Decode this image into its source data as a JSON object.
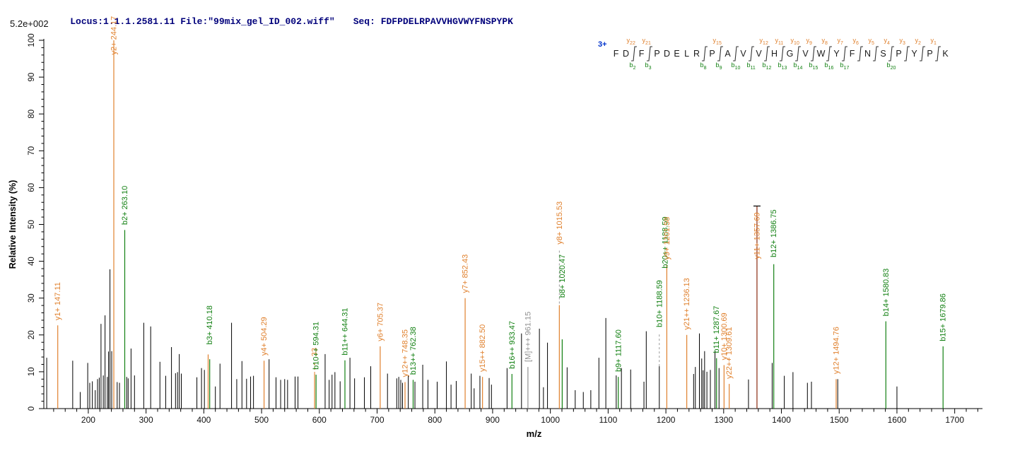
{
  "header": {
    "locus_file": "Locus:1.1.1.2581.11 File:\"99mix_gel_ID_002.wiff\"",
    "seq_label": "Seq: FDFPDELRPAVVHGVWYFNSPYPK",
    "scale_label": "5.2e+002"
  },
  "axes": {
    "x_title": "m/z",
    "y_title": "Relative  Intensity  (%)"
  },
  "colors": {
    "k": "#000000",
    "y": "#e0812e",
    "b": "#128012",
    "g": "#909090",
    "yd": "#8a2b10",
    "axis": "#000000",
    "header_navy": "#00007b",
    "charge_blue": "#0033cc",
    "connector_gray": "#9a9a9a"
  },
  "ladder": {
    "charge": "3+",
    "residues": [
      {
        "aa": "F"
      },
      {
        "aa": "D",
        "cut": {
          "b": "2",
          "y": "22"
        }
      },
      {
        "aa": "F",
        "cut": {
          "b": "3",
          "y": "21"
        }
      },
      {
        "aa": "P"
      },
      {
        "aa": "D"
      },
      {
        "aa": "E"
      },
      {
        "aa": "L"
      },
      {
        "aa": "R",
        "cut": {
          "b": "8"
        }
      },
      {
        "aa": "P",
        "cut": {
          "b": "9",
          "y": "15"
        }
      },
      {
        "aa": "A",
        "cut": {
          "b": "10"
        }
      },
      {
        "aa": "V",
        "cut": {
          "b": "11"
        }
      },
      {
        "aa": "V",
        "cut": {
          "b": "12",
          "y": "12"
        }
      },
      {
        "aa": "H",
        "cut": {
          "b": "13",
          "y": "11"
        }
      },
      {
        "aa": "G",
        "cut": {
          "b": "14",
          "y": "10"
        }
      },
      {
        "aa": "V",
        "cut": {
          "b": "15",
          "y": "9"
        }
      },
      {
        "aa": "W",
        "cut": {
          "b": "16",
          "y": "8"
        }
      },
      {
        "aa": "Y",
        "cut": {
          "b": "17",
          "y": "7"
        }
      },
      {
        "aa": "F",
        "cut": {
          "y": "6"
        }
      },
      {
        "aa": "N",
        "cut": {
          "y": "5"
        }
      },
      {
        "aa": "S",
        "cut": {
          "b": "20",
          "y": "4"
        }
      },
      {
        "aa": "P",
        "cut": {
          "y": "3"
        }
      },
      {
        "aa": "Y",
        "cut": {
          "y": "2"
        }
      },
      {
        "aa": "P",
        "cut": {
          "y": "1"
        }
      },
      {
        "aa": "K"
      }
    ]
  },
  "chart_data": {
    "type": "bar",
    "subtype": "centroided MS/MS spectrum (stick plot)",
    "title": "",
    "xlabel": "m/z",
    "ylabel": "Relative Intensity (%)",
    "absolute_intensity_max": "5.2e+002",
    "precursor_charge": "3+",
    "x_axis": {
      "min": 123,
      "max": 1742,
      "major_tick_start": 200,
      "major_tick_end": 1700,
      "major_step": 100,
      "minor_step": 20
    },
    "y_axis": {
      "min": 0,
      "max": 100,
      "major_step": 10,
      "minor_step": 2
    },
    "legend": "orange = y ions, green = b ions, gray = precursor [M], black = unmatched",
    "peaks": [
      {
        "mz": 128,
        "i": 13.8,
        "t": "k"
      },
      {
        "mz": 147.11,
        "i": 22.6,
        "t": "y",
        "lab": "y1+ 147.11"
      },
      {
        "mz": 173,
        "i": 13,
        "t": "k"
      },
      {
        "mz": 186,
        "i": 4.5,
        "t": "k"
      },
      {
        "mz": 199,
        "i": 12.4,
        "t": "k"
      },
      {
        "mz": 202.5,
        "i": 7,
        "t": "k"
      },
      {
        "mz": 207,
        "i": 7.4,
        "t": "k"
      },
      {
        "mz": 212,
        "i": 5,
        "t": "k"
      },
      {
        "mz": 216,
        "i": 8,
        "t": "k"
      },
      {
        "mz": 219,
        "i": 8.4,
        "t": "k"
      },
      {
        "mz": 222,
        "i": 23,
        "t": "k"
      },
      {
        "mz": 226,
        "i": 9,
        "t": "k"
      },
      {
        "mz": 229,
        "i": 25.3,
        "t": "k"
      },
      {
        "mz": 233,
        "i": 8.6,
        "t": "k"
      },
      {
        "mz": 235,
        "i": 15.5,
        "t": "k"
      },
      {
        "mz": 237.5,
        "i": 37.8,
        "t": "k"
      },
      {
        "mz": 240.5,
        "i": 15.6,
        "t": "k"
      },
      {
        "mz": 244.17,
        "i": 100,
        "t": "y",
        "lab": "y2+ 244.17",
        "ls": 95.5
      },
      {
        "mz": 250,
        "i": 7.2,
        "t": "k"
      },
      {
        "mz": 254,
        "i": 7,
        "t": "k"
      },
      {
        "mz": 263.1,
        "i": 48.5,
        "t": "b",
        "lab": "b2+ 263.10"
      },
      {
        "mz": 266.5,
        "i": 8.6,
        "t": "k"
      },
      {
        "mz": 269,
        "i": 8.2,
        "t": "k"
      },
      {
        "mz": 274,
        "i": 16.3,
        "t": "k"
      },
      {
        "mz": 280,
        "i": 9,
        "t": "k"
      },
      {
        "mz": 296,
        "i": 23.3,
        "t": "k"
      },
      {
        "mz": 308,
        "i": 22.3,
        "t": "k"
      },
      {
        "mz": 324,
        "i": 12.7,
        "t": "k"
      },
      {
        "mz": 334,
        "i": 8.9,
        "t": "k"
      },
      {
        "mz": 344,
        "i": 16.7,
        "t": "k"
      },
      {
        "mz": 351,
        "i": 9.6,
        "t": "k"
      },
      {
        "mz": 354.5,
        "i": 9.9,
        "t": "k"
      },
      {
        "mz": 357.5,
        "i": 14.8,
        "t": "k"
      },
      {
        "mz": 361,
        "i": 9.5,
        "t": "k"
      },
      {
        "mz": 388,
        "i": 8.5,
        "t": "k"
      },
      {
        "mz": 396,
        "i": 11,
        "t": "k"
      },
      {
        "mz": 401,
        "i": 10.5,
        "t": "k"
      },
      {
        "mz": 407.5,
        "i": 14.7,
        "t": "y"
      },
      {
        "mz": 410.18,
        "i": 13.4,
        "t": "b",
        "lab": "b3+ 410.18",
        "ls": 16.8
      },
      {
        "mz": 420,
        "i": 6,
        "t": "k"
      },
      {
        "mz": 428,
        "i": 12.2,
        "t": "k"
      },
      {
        "mz": 448,
        "i": 23.3,
        "t": "k"
      },
      {
        "mz": 457,
        "i": 8,
        "t": "k"
      },
      {
        "mz": 466,
        "i": 12.9,
        "t": "k"
      },
      {
        "mz": 474,
        "i": 8.1,
        "t": "k"
      },
      {
        "mz": 481,
        "i": 8.7,
        "t": "k"
      },
      {
        "mz": 486,
        "i": 8.9,
        "t": "k"
      },
      {
        "mz": 504.29,
        "i": 13,
        "t": "y",
        "lab": "y4+ 504.29"
      },
      {
        "mz": 513,
        "i": 13.4,
        "t": "k"
      },
      {
        "mz": 525,
        "i": 8.5,
        "t": "k"
      },
      {
        "mz": 533,
        "i": 7.8,
        "t": "k"
      },
      {
        "mz": 540,
        "i": 8,
        "t": "k"
      },
      {
        "mz": 545,
        "i": 7.8,
        "t": "k"
      },
      {
        "mz": 558,
        "i": 8.7,
        "t": "k"
      },
      {
        "mz": 563,
        "i": 8.7,
        "t": "k"
      },
      {
        "mz": 591.8,
        "i": 9.4,
        "t": "y",
        "lab": ".33",
        "ls": 13,
        "conn": [
          9.4,
          12.5
        ],
        "connc": "y"
      },
      {
        "mz": 594.31,
        "i": 9.2,
        "t": "b",
        "lab": "b10++ 594.31",
        "ls": 10
      },
      {
        "mz": 610,
        "i": 14.8,
        "t": "k"
      },
      {
        "mz": 617,
        "i": 7.8,
        "t": "k"
      },
      {
        "mz": 622,
        "i": 9.2,
        "t": "k"
      },
      {
        "mz": 627,
        "i": 9.9,
        "t": "k"
      },
      {
        "mz": 636,
        "i": 7.4,
        "t": "k"
      },
      {
        "mz": 644.31,
        "i": 13.1,
        "t": "b",
        "lab": "b11++ 644.31"
      },
      {
        "mz": 653,
        "i": 13.8,
        "t": "k"
      },
      {
        "mz": 661,
        "i": 8.2,
        "t": "k"
      },
      {
        "mz": 678,
        "i": 8.5,
        "t": "k"
      },
      {
        "mz": 689,
        "i": 11.5,
        "t": "k"
      },
      {
        "mz": 705.37,
        "i": 16.9,
        "t": "y",
        "lab": "y6+ 705.37"
      },
      {
        "mz": 718,
        "i": 9.5,
        "t": "k"
      },
      {
        "mz": 734,
        "i": 8.2,
        "t": "k"
      },
      {
        "mz": 737.5,
        "i": 8.6,
        "t": "k"
      },
      {
        "mz": 741,
        "i": 7.8,
        "t": "k"
      },
      {
        "mz": 744,
        "i": 7,
        "t": "k"
      },
      {
        "mz": 748.35,
        "i": 7.2,
        "t": "y",
        "lab": "y12++ 748.35"
      },
      {
        "mz": 754,
        "i": 9,
        "t": "k"
      },
      {
        "mz": 762.38,
        "i": 7.8,
        "t": "b",
        "lab": "b13++ 762.38"
      },
      {
        "mz": 765.5,
        "i": 7.3,
        "t": "k"
      },
      {
        "mz": 779,
        "i": 11.9,
        "t": "k"
      },
      {
        "mz": 788,
        "i": 7.8,
        "t": "k"
      },
      {
        "mz": 804,
        "i": 7.3,
        "t": "k"
      },
      {
        "mz": 820,
        "i": 12.8,
        "t": "k"
      },
      {
        "mz": 828,
        "i": 6.5,
        "t": "k"
      },
      {
        "mz": 837,
        "i": 7.5,
        "t": "k"
      },
      {
        "mz": 852.43,
        "i": 30,
        "t": "y",
        "lab": "y7+ 852.43"
      },
      {
        "mz": 863,
        "i": 9.5,
        "t": "k"
      },
      {
        "mz": 868,
        "i": 5.5,
        "t": "k"
      },
      {
        "mz": 878,
        "i": 8.9,
        "t": "k"
      },
      {
        "mz": 882.5,
        "i": 8.6,
        "t": "y",
        "lab": "y15++ 882.50"
      },
      {
        "mz": 894,
        "i": 8.3,
        "t": "k"
      },
      {
        "mz": 898,
        "i": 6.5,
        "t": "k"
      },
      {
        "mz": 925,
        "i": 11,
        "t": "k"
      },
      {
        "mz": 933.47,
        "i": 9.4,
        "t": "b",
        "lab": "b16++ 933.47"
      },
      {
        "mz": 950,
        "i": 20.4,
        "t": "k"
      },
      {
        "mz": 961.15,
        "i": 11.3,
        "t": "g",
        "lab": "[M]+++ 961.15"
      },
      {
        "mz": 981,
        "i": 21.7,
        "t": "k"
      },
      {
        "mz": 988,
        "i": 5.8,
        "t": "k"
      },
      {
        "mz": 995,
        "i": 17.9,
        "t": "k"
      },
      {
        "mz": 1015.53,
        "i": 28.1,
        "t": "y",
        "lab": "y8+ 1015.53",
        "ls": 44,
        "conn": [
          28.5,
          43
        ],
        "connc": "g"
      },
      {
        "mz": 1020.47,
        "i": 18.8,
        "t": "b",
        "lab": "b8+ 1020.47",
        "ls": 29.5
      },
      {
        "mz": 1029,
        "i": 11.2,
        "t": "k"
      },
      {
        "mz": 1043,
        "i": 5,
        "t": "k"
      },
      {
        "mz": 1057,
        "i": 4.5,
        "t": "k"
      },
      {
        "mz": 1070,
        "i": 5,
        "t": "k"
      },
      {
        "mz": 1084,
        "i": 13.8,
        "t": "k"
      },
      {
        "mz": 1096,
        "i": 24.6,
        "t": "k"
      },
      {
        "mz": 1114,
        "i": 9,
        "t": "k"
      },
      {
        "mz": 1117.6,
        "i": 8.6,
        "t": "b",
        "lab": "b9+ 1117.60"
      },
      {
        "mz": 1123,
        "i": 11,
        "t": "k"
      },
      {
        "mz": 1139,
        "i": 10.6,
        "t": "k"
      },
      {
        "mz": 1162,
        "i": 7.3,
        "t": "k"
      },
      {
        "mz": 1166,
        "i": 21,
        "t": "k"
      },
      {
        "mz": 1188.59,
        "i": 11.5,
        "t": "k",
        "lab": "b10+ 1188.59",
        "labt": "b",
        "ls": 21.5,
        "lab2": "b20++ 1188.59",
        "ls2": 37.5,
        "conn": [
          11.5,
          20.5
        ],
        "connc": "g"
      },
      {
        "mz": 1201.58,
        "i": 39,
        "t": "y",
        "lab": "y9+ 1201.58"
      },
      {
        "mz": 1236.13,
        "i": 20,
        "t": "y",
        "lab": "y21++ 1236.13"
      },
      {
        "mz": 1248,
        "i": 9.4,
        "t": "k"
      },
      {
        "mz": 1251,
        "i": 11.3,
        "t": "k"
      },
      {
        "mz": 1258,
        "i": 20.4,
        "t": "k"
      },
      {
        "mz": 1262,
        "i": 13.6,
        "t": "k"
      },
      {
        "mz": 1264.5,
        "i": 10.4,
        "t": "k"
      },
      {
        "mz": 1267,
        "i": 15.6,
        "t": "k"
      },
      {
        "mz": 1271,
        "i": 10,
        "t": "k"
      },
      {
        "mz": 1277,
        "i": 10.5,
        "t": "k"
      },
      {
        "mz": 1285,
        "i": 15.6,
        "t": "k"
      },
      {
        "mz": 1287.67,
        "i": 13.7,
        "t": "b",
        "lab": "b11+ 1287.67"
      },
      {
        "mz": 1292,
        "i": 11,
        "t": "k"
      },
      {
        "mz": 1300.69,
        "i": 11.8,
        "t": "y",
        "lab": "y10+ 1300.69"
      },
      {
        "mz": 1309.61,
        "i": 6.7,
        "t": "y",
        "lab": "y22++ 1309.61"
      },
      {
        "mz": 1343,
        "i": 7.9,
        "t": "k"
      },
      {
        "mz": 1357.69,
        "i": 55,
        "t": "yd",
        "lab": "y11+ 1357.69",
        "labt": "y",
        "ls": 40,
        "tick": true
      },
      {
        "mz": 1384,
        "i": 12.4,
        "t": "k"
      },
      {
        "mz": 1386.75,
        "i": 39.2,
        "t": "b",
        "lab": "b12+ 1386.75",
        "ls": 40.5
      },
      {
        "mz": 1405,
        "i": 8.9,
        "t": "k"
      },
      {
        "mz": 1420,
        "i": 9.9,
        "t": "k"
      },
      {
        "mz": 1445,
        "i": 7,
        "t": "k"
      },
      {
        "mz": 1452,
        "i": 7.3,
        "t": "k"
      },
      {
        "mz": 1494.76,
        "i": 8,
        "t": "y",
        "lab": "y12+ 1494.76"
      },
      {
        "mz": 1497.5,
        "i": 8,
        "t": "k"
      },
      {
        "mz": 1580.83,
        "i": 23.7,
        "t": "b",
        "lab": "b14+ 1580.83"
      },
      {
        "mz": 1600,
        "i": 6,
        "t": "k"
      },
      {
        "mz": 1679.86,
        "i": 16.9,
        "t": "b",
        "lab": "b15+ 1679.86"
      }
    ]
  }
}
